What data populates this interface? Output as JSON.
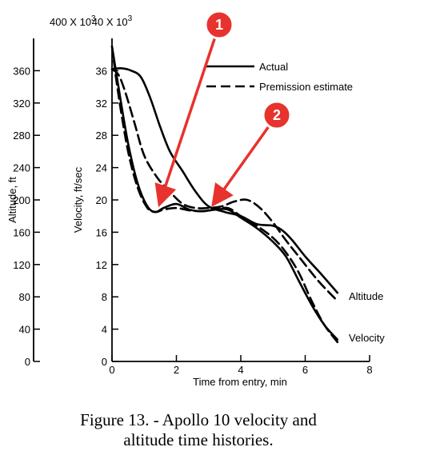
{
  "chart_data": {
    "type": "line",
    "xlabel": "Time from entry, min",
    "xlim": [
      0,
      8
    ],
    "x_ticks": [
      "0",
      "2",
      "4",
      "6",
      "8"
    ],
    "axes": {
      "altitude": {
        "label": "Altitude, ft",
        "top_label": "400 X 10",
        "top_label_exp": "3",
        "ylim": [
          0,
          400
        ],
        "ticks": [
          "0",
          "40",
          "80",
          "120",
          "160",
          "200",
          "240",
          "280",
          "320",
          "360"
        ]
      },
      "velocity": {
        "label": "Velocity, ft/sec",
        "top_label": "40 X 10",
        "top_label_exp": "3",
        "ylim": [
          0,
          40
        ],
        "ticks": [
          "0",
          "4",
          "8",
          "12",
          "16",
          "20",
          "24",
          "28",
          "32",
          "36"
        ]
      }
    },
    "legend": {
      "position": "top-right",
      "entries": [
        {
          "name": "Actual",
          "style": "solid"
        },
        {
          "name": "Premission estimate",
          "style": "dashed"
        }
      ]
    },
    "curve_labels": {
      "altitude": "Altitude",
      "velocity": "Velocity"
    },
    "series": [
      {
        "curve": "velocity",
        "style": "solid",
        "x": [
          0,
          0.2,
          0.5,
          0.8,
          1.1,
          1.35,
          1.6,
          2.0,
          2.4,
          2.8,
          3.2,
          3.6,
          4.0,
          4.5,
          5.0,
          5.4,
          5.8,
          6.2,
          6.6,
          7.0
        ],
        "y": [
          39,
          34,
          27,
          22,
          19.2,
          18.5,
          19,
          19.5,
          18.8,
          18.6,
          18.8,
          18.8,
          17.8,
          16.5,
          14.8,
          13,
          10,
          7,
          4.5,
          2.7
        ]
      },
      {
        "curve": "velocity",
        "style": "dashed",
        "x": [
          0,
          0.2,
          0.5,
          0.8,
          1.1,
          1.35,
          1.6,
          2.0,
          2.4,
          2.8,
          3.2,
          3.6,
          4.0,
          4.5,
          5.0,
          5.4,
          5.8,
          6.2,
          6.6,
          7.0
        ],
        "y": [
          39,
          33,
          26,
          21.5,
          19,
          18.5,
          18.8,
          19,
          18.7,
          18.6,
          18.8,
          19,
          18,
          16.8,
          15.3,
          13.5,
          11,
          7.5,
          4.5,
          2.4
        ]
      },
      {
        "curve": "altitude",
        "style": "solid",
        "x": [
          0,
          0.3,
          0.6,
          0.9,
          1.2,
          1.5,
          1.8,
          2.2,
          2.6,
          3.0,
          3.5,
          4.0,
          4.5,
          5.0,
          5.3,
          5.6,
          6.0,
          6.5,
          7.0
        ],
        "y": [
          362,
          363,
          360,
          352,
          325,
          290,
          260,
          235,
          210,
          192,
          185,
          180,
          170,
          168,
          162,
          150,
          130,
          108,
          85
        ]
      },
      {
        "curve": "altitude",
        "style": "dashed",
        "x": [
          0,
          0.2,
          0.4,
          0.7,
          1.0,
          1.4,
          1.8,
          2.2,
          2.6,
          3.0,
          3.4,
          3.8,
          4.2,
          4.6,
          5.0,
          5.4,
          5.8,
          6.4,
          7.0
        ],
        "y": [
          362,
          355,
          335,
          295,
          255,
          228,
          210,
          195,
          190,
          190,
          192,
          198,
          200,
          190,
          172,
          150,
          130,
          100,
          75
        ]
      }
    ],
    "annotations": [
      {
        "label": "1",
        "x": 1.45,
        "y_velocity": 18.8
      },
      {
        "label": "2",
        "x": 3.1,
        "y_velocity": 18.8
      }
    ]
  },
  "caption": {
    "line1": "Figure 13. - Apollo 10 velocity and",
    "line2": "altitude time histories."
  }
}
